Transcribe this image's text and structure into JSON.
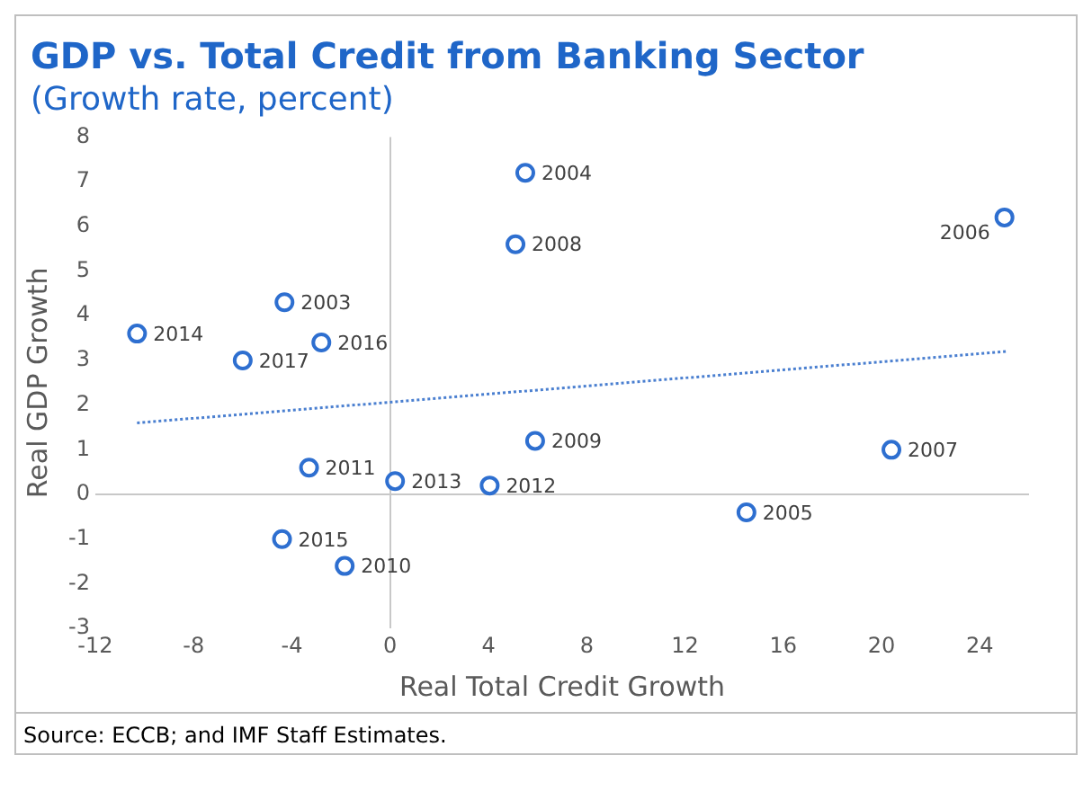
{
  "chart_data": {
    "type": "scatter",
    "title": "GDP vs. Total Credit from Banking Sector",
    "subtitle": "(Growth rate, percent)",
    "xlabel": "Real Total Credit Growth",
    "ylabel": "Real GDP Growth",
    "annotations": [
      "Source: ECCB; and IMF Staff Estimates.",
      {
        "text": "2003",
        "x": -4.3,
        "y": 4.3
      },
      {
        "text": "2004",
        "x": 5.5,
        "y": 7.2
      },
      {
        "text": "2005",
        "x": 14.5,
        "y": -0.4
      },
      {
        "text": "2006",
        "x": 25.0,
        "y": 6.2
      },
      {
        "text": "2007",
        "x": 20.4,
        "y": 1.0
      },
      {
        "text": "2008",
        "x": 5.1,
        "y": 5.6
      },
      {
        "text": "2009",
        "x": 5.9,
        "y": 1.2
      },
      {
        "text": "2010",
        "x": -1.85,
        "y": -1.6
      },
      {
        "text": "2011",
        "x": -3.3,
        "y": 0.6
      },
      {
        "text": "2012",
        "x": 4.05,
        "y": 0.2
      },
      {
        "text": "2013",
        "x": 0.2,
        "y": 0.3
      },
      {
        "text": "2014",
        "x": -10.3,
        "y": 3.6
      },
      {
        "text": "2015",
        "x": -4.4,
        "y": -1.0
      },
      {
        "text": "2016",
        "x": -2.8,
        "y": 3.4
      },
      {
        "text": "2017",
        "x": -6.0,
        "y": 3.0
      }
    ],
    "xlim": [
      -12,
      26
    ],
    "xticks": [
      -12,
      -8,
      -4,
      0,
      4,
      8,
      12,
      16,
      20,
      24
    ],
    "ylim": [
      -3,
      8
    ],
    "yticks": [
      -3,
      -2,
      -1,
      0,
      1,
      2,
      3,
      4,
      5,
      6,
      7,
      8
    ],
    "marker": "circle",
    "series": [
      {
        "color": "#2e6fd0",
        "x": [
          -4.3,
          5.5,
          14.5,
          25.0,
          20.4,
          5.1,
          5.9,
          -1.85,
          -3.3,
          4.05,
          0.2,
          -10.3,
          -4.4,
          -2.8,
          -6.0
        ],
        "values": [
          4.3,
          7.2,
          -0.4,
          6.2,
          1.0,
          5.6,
          1.2,
          -1.6,
          0.6,
          0.2,
          0.3,
          3.6,
          -1.0,
          3.4,
          3.0
        ]
      },
      {
        "type": "line",
        "color": "#4a7fd0",
        "line_style": "dotted",
        "marker": "none",
        "x": [
          -10.3,
          25.1
        ],
        "values": [
          1.6,
          3.2
        ]
      }
    ]
  }
}
